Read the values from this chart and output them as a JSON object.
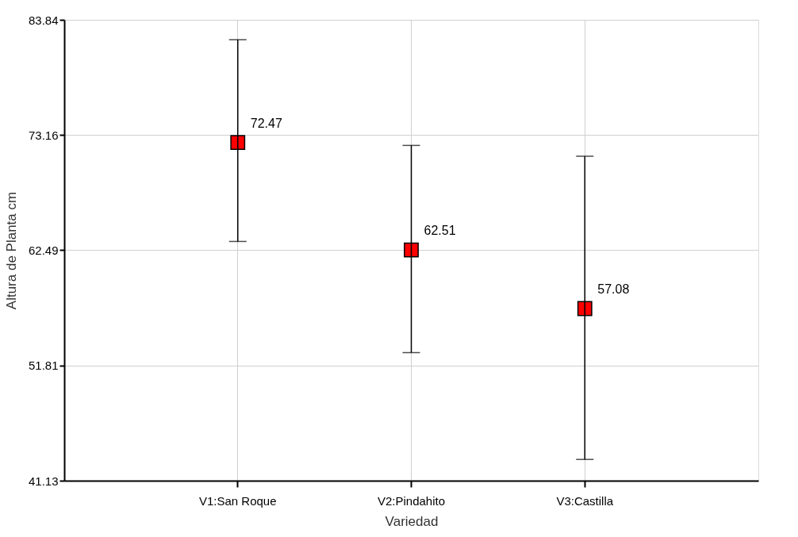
{
  "chart_data": {
    "type": "scatter",
    "xlabel": "Variedad",
    "ylabel": "Altura de Planta cm",
    "categories": [
      "V1:San Roque",
      "V2:Pindahito",
      "V3:Castilla"
    ],
    "series": [
      {
        "color": "#ff0000",
        "values": [
          72.47,
          62.51,
          57.08
        ],
        "errors": [
          [
            63.3,
            82.0
          ],
          [
            53.0,
            72.2
          ],
          [
            43.1,
            71.2
          ]
        ]
      }
    ],
    "ylim": [
      41.13,
      83.84
    ],
    "yticks": [
      41.13,
      51.81,
      62.49,
      73.16,
      83.84
    ],
    "grid": true,
    "marker": "square",
    "data_labels": true
  }
}
